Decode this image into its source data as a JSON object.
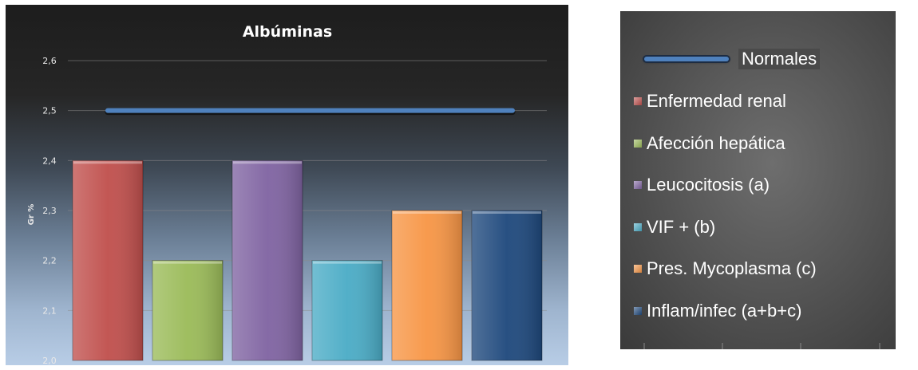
{
  "chart_data": {
    "type": "bar",
    "title": "Albúminas",
    "ylabel": "Gr %",
    "xlabel": "",
    "ylim": [
      2.0,
      2.6
    ],
    "yticks": [
      "2,0",
      "2,1",
      "2,2",
      "2,3",
      "2,4",
      "2,5",
      "2,6"
    ],
    "grid": true,
    "legend_placement": "right",
    "categories": [
      "Enfermedad renal",
      "Afección hepática",
      "Leucocitosis (a)",
      "VIF + (b)",
      "Pres. Mycoplasma (c)",
      "Inflam/infec (a+b+c)"
    ],
    "values": [
      2.4,
      2.2,
      2.4,
      2.2,
      2.3,
      2.3
    ],
    "colors": [
      "#c0504d",
      "#9bbb59",
      "#8064a2",
      "#4bacc6",
      "#f79646",
      "#1f497d"
    ],
    "reference_line": {
      "name": "Normales",
      "value": 2.5,
      "color": "#4f81bd"
    }
  }
}
